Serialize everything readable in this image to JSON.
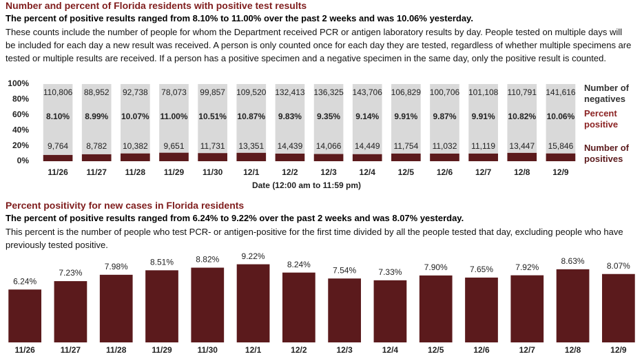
{
  "chart_data": [
    {
      "type": "stacked_percent_bar",
      "title": "Number and percent of Florida residents with positive test results",
      "subtitle": "The percent of positive results ranged from 8.10% to 11.00% over the past 2 weeks and was 10.06% yesterday.",
      "description": "These counts include the number of people for whom the Department received PCR or antigen laboratory results by day. People tested on multiple days will be included for each day a new result was received. A person is only counted once for each day they are tested, regardless of whether multiple specimens are tested or multiple results are received. If a person has a positive specimen and a negative specimen in the same day, only the positive result is counted.",
      "x_label": "Date (12:00 am to 11:59 pm)",
      "categories": [
        "11/26",
        "11/27",
        "11/28",
        "11/29",
        "11/30",
        "12/1",
        "12/2",
        "12/3",
        "12/4",
        "12/5",
        "12/6",
        "12/7",
        "12/8",
        "12/9"
      ],
      "ylim": [
        0,
        100
      ],
      "yticks": [
        {
          "value": 0,
          "label": "0%"
        },
        {
          "value": 20,
          "label": "20%"
        },
        {
          "value": 40,
          "label": "40%"
        },
        {
          "value": 60,
          "label": "60%"
        },
        {
          "value": 80,
          "label": "80%"
        },
        {
          "value": 100,
          "label": "100%"
        }
      ],
      "grid": false,
      "series": [
        {
          "name": "Number of negatives",
          "color": "#d9d9d9",
          "values": [
            110806,
            88952,
            92738,
            78073,
            99857,
            109520,
            132413,
            136325,
            143706,
            106829,
            100706,
            101108,
            110791,
            141616
          ],
          "value_labels": [
            "110,806",
            "88,952",
            "92,738",
            "78,073",
            "99,857",
            "109,520",
            "132,413",
            "136,325",
            "143,706",
            "106,829",
            "100,706",
            "101,108",
            "110,791",
            "141,616"
          ]
        },
        {
          "name": "Percent positive",
          "color": "#8b2323",
          "values": [
            8.1,
            8.99,
            10.07,
            11.0,
            10.51,
            10.87,
            9.83,
            9.35,
            9.14,
            9.91,
            9.87,
            9.91,
            10.82,
            10.06
          ],
          "value_labels": [
            "8.10%",
            "8.99%",
            "10.07%",
            "11.00%",
            "10.51%",
            "10.87%",
            "9.83%",
            "9.35%",
            "9.14%",
            "9.91%",
            "9.87%",
            "9.91%",
            "10.82%",
            "10.06%"
          ]
        },
        {
          "name": "Number of positives",
          "color": "#5b1a1c",
          "values": [
            9764,
            8782,
            10382,
            9651,
            11731,
            13351,
            14439,
            14066,
            14449,
            11754,
            11032,
            11119,
            13447,
            15846
          ],
          "value_labels": [
            "9,764",
            "8,782",
            "10,382",
            "9,651",
            "11,731",
            "13,351",
            "14,439",
            "14,066",
            "14,449",
            "11,754",
            "11,032",
            "11,119",
            "13,447",
            "15,846"
          ]
        }
      ]
    },
    {
      "type": "bar",
      "title": "Percent positivity for new cases in Florida residents",
      "subtitle": "The percent of positive results ranged from 6.24% to 9.22% over the past 2 weeks and was 8.07% yesterday.",
      "description": "This percent is the number of people who test PCR- or antigen-positive for the first time divided by all the people tested that day, excluding people who have previously tested positive.",
      "categories": [
        "11/26",
        "11/27",
        "11/28",
        "11/29",
        "11/30",
        "12/1",
        "12/2",
        "12/3",
        "12/4",
        "12/5",
        "12/6",
        "12/7",
        "12/8",
        "12/9"
      ],
      "values": [
        6.24,
        7.23,
        7.98,
        8.51,
        8.82,
        9.22,
        8.24,
        7.54,
        7.33,
        7.9,
        7.65,
        7.92,
        8.63,
        8.07
      ],
      "value_labels": [
        "6.24%",
        "7.23%",
        "7.98%",
        "8.51%",
        "8.82%",
        "9.22%",
        "8.24%",
        "7.54%",
        "7.33%",
        "7.90%",
        "7.65%",
        "7.92%",
        "8.63%",
        "8.07%"
      ],
      "color": "#5b1a1c",
      "ylim": [
        0,
        10
      ]
    }
  ]
}
